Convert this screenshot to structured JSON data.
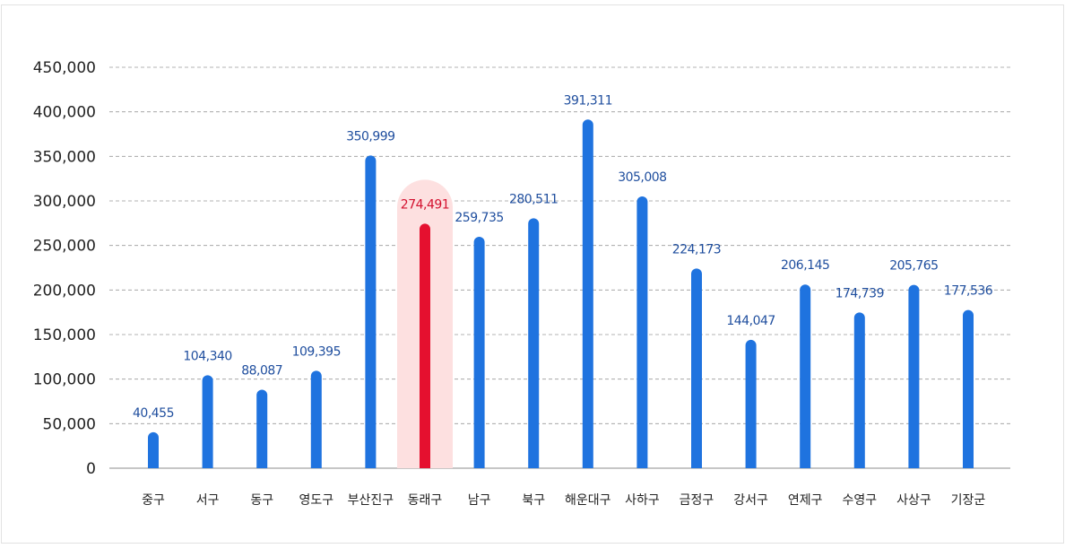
{
  "chart_data": {
    "type": "bar",
    "categories": [
      "중구",
      "서구",
      "동구",
      "영도구",
      "부산진구",
      "동래구",
      "남구",
      "북구",
      "해운대구",
      "사하구",
      "금정구",
      "강서구",
      "연제구",
      "수영구",
      "사상구",
      "기장군"
    ],
    "values": [
      40455,
      104340,
      88087,
      109395,
      350999,
      274491,
      259735,
      280511,
      391311,
      305008,
      224173,
      144047,
      206145,
      174739,
      205765,
      177536
    ],
    "value_labels": [
      "40,455",
      "104,340",
      "88,087",
      "109,395",
      "350,999",
      "274,491",
      "259,735",
      "280,511",
      "391,311",
      "305,008",
      "224,173",
      "144,047",
      "206,145",
      "174,739",
      "205,765",
      "177,536"
    ],
    "y_ticks": [
      "0",
      "50,000",
      "100,000",
      "150,000",
      "200,000",
      "250,000",
      "300,000",
      "350,000",
      "400,000",
      "450,000"
    ],
    "ylim": [
      0,
      450000
    ],
    "grid": true,
    "highlight_index": 5,
    "colors": {
      "bar": "#1f73df",
      "highlight": "#e5102f",
      "highlight_bg": "#fde0e0",
      "label": "#1f4e9e",
      "highlight_label": "#d3102e",
      "grid": "#9a9a9a"
    }
  }
}
